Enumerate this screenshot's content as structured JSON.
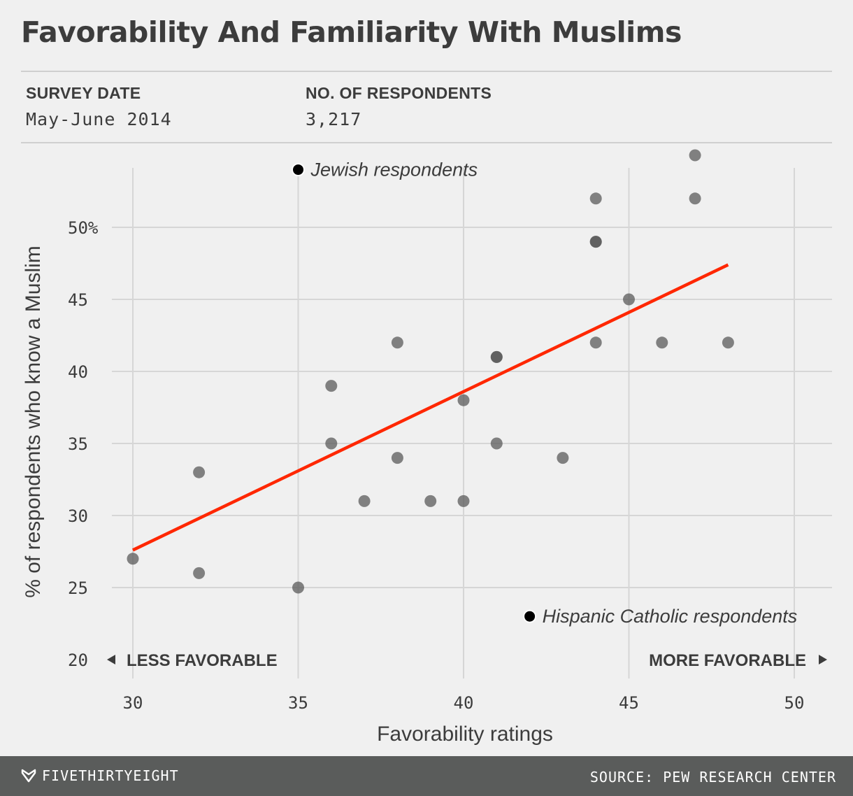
{
  "header": {
    "title": "Favorability And Familiarity With Muslims",
    "survey_date_label": "SURVEY DATE",
    "survey_date_value": "May-June 2014",
    "respondents_label": "NO. OF RESPONDENTS",
    "respondents_value": "3,217"
  },
  "footer": {
    "brand": "FIVETHIRTYEIGHT",
    "source": "SOURCE: PEW RESEARCH CENTER"
  },
  "colors": {
    "background": "#f0f0f0",
    "point": "#6e6e6e",
    "highlight_point": "#333333",
    "annotated_point": "#000000",
    "trend_line": "#ff2700",
    "grid": "#d6d6d6",
    "footer": "#5a5c5b"
  },
  "chart_data": {
    "type": "scatter",
    "xlabel": "Favorability ratings",
    "ylabel": "% of respondents who know a Muslim",
    "xlim": [
      30,
      50
    ],
    "ylim": [
      20,
      55
    ],
    "x_ticks": [
      "30",
      "35",
      "40",
      "45",
      "50"
    ],
    "y_ticks": [
      "20",
      "25",
      "30",
      "35",
      "40",
      "45",
      "50%"
    ],
    "grid": true,
    "direction_labels": {
      "left": "LESS FAVORABLE",
      "right": "MORE FAVORABLE"
    },
    "points": [
      {
        "x": 30,
        "y": 27
      },
      {
        "x": 32,
        "y": 33
      },
      {
        "x": 32,
        "y": 26
      },
      {
        "x": 35,
        "y": 25
      },
      {
        "x": 36,
        "y": 39
      },
      {
        "x": 36,
        "y": 35
      },
      {
        "x": 37,
        "y": 31
      },
      {
        "x": 38,
        "y": 42
      },
      {
        "x": 38,
        "y": 34
      },
      {
        "x": 39,
        "y": 31
      },
      {
        "x": 40,
        "y": 38
      },
      {
        "x": 40,
        "y": 31
      },
      {
        "x": 41,
        "y": 41
      },
      {
        "x": 41,
        "y": 41
      },
      {
        "x": 41,
        "y": 35
      },
      {
        "x": 43,
        "y": 34
      },
      {
        "x": 44,
        "y": 52
      },
      {
        "x": 44,
        "y": 49
      },
      {
        "x": 44,
        "y": 49
      },
      {
        "x": 44,
        "y": 42
      },
      {
        "x": 45,
        "y": 45
      },
      {
        "x": 46,
        "y": 42
      },
      {
        "x": 47,
        "y": 55
      },
      {
        "x": 47,
        "y": 52
      },
      {
        "x": 48,
        "y": 42
      }
    ],
    "annotations": [
      {
        "x": 35,
        "y": 54,
        "label": "Jewish respondents"
      },
      {
        "x": 42,
        "y": 23,
        "label": "Hispanic Catholic respondents"
      }
    ],
    "trend_line": {
      "x": [
        30,
        48
      ],
      "y": [
        27.6,
        47.4
      ]
    }
  }
}
